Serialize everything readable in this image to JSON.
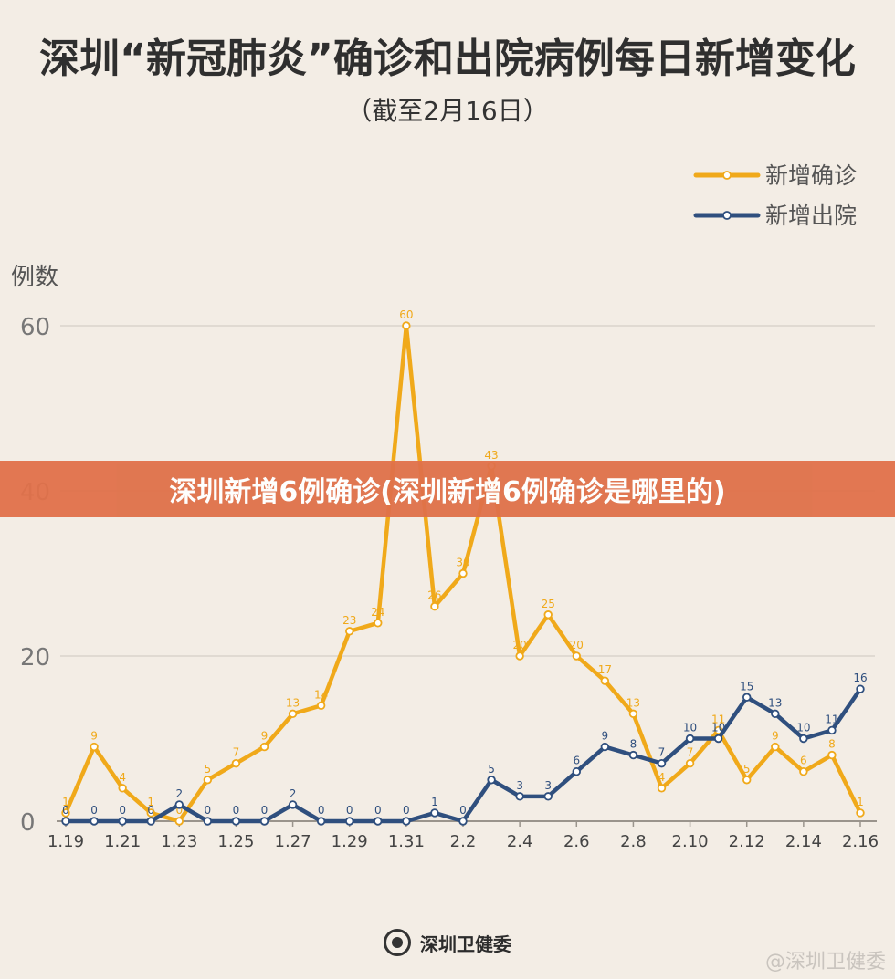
{
  "header": {
    "title": "深圳“新冠肺炎”确诊和出院病例每日新增变化",
    "subtitle": "（截至2月16日）"
  },
  "banner": {
    "text": "深圳新增6例确诊(深圳新增6例确诊是哪里的)"
  },
  "footer": {
    "source": "深圳卫健委",
    "watermark": "@深圳卫健委"
  },
  "colors": {
    "confirmed": "#f0a91a",
    "discharged": "#2f4f7e",
    "grid": "#d9d3cb",
    "axis_text": "#555555"
  },
  "chart_data": {
    "type": "line",
    "ylabel": "例数",
    "ylim": [
      0,
      60
    ],
    "yticks": [
      0,
      20,
      40,
      60
    ],
    "categories": [
      "1.19",
      "1.20",
      "1.21",
      "1.22",
      "1.23",
      "1.24",
      "1.25",
      "1.26",
      "1.27",
      "1.28",
      "1.29",
      "1.30",
      "1.31",
      "2.1",
      "2.2",
      "2.3",
      "2.4",
      "2.5",
      "2.6",
      "2.7",
      "2.8",
      "2.9",
      "2.10",
      "2.11",
      "2.12",
      "2.13",
      "2.14",
      "2.15",
      "2.16"
    ],
    "xtick_labels": [
      "1.19",
      "1.21",
      "1.23",
      "1.25",
      "1.27",
      "1.29",
      "1.31",
      "2.2",
      "2.4",
      "2.6",
      "2.8",
      "2.10",
      "2.12",
      "2.14",
      "2.16"
    ],
    "legend_position": "top-right",
    "series": [
      {
        "name": "新增确诊",
        "color": "#f0a91a",
        "values": [
          1,
          9,
          4,
          1,
          0,
          5,
          7,
          9,
          13,
          14,
          23,
          24,
          60,
          26,
          30,
          43,
          20,
          25,
          20,
          17,
          13,
          4,
          7,
          11,
          5,
          9,
          6,
          8,
          1
        ]
      },
      {
        "name": "新增出院",
        "color": "#2f4f7e",
        "values": [
          0,
          0,
          0,
          0,
          2,
          0,
          0,
          0,
          2,
          0,
          0,
          0,
          0,
          1,
          0,
          5,
          3,
          3,
          6,
          9,
          8,
          7,
          10,
          10,
          15,
          13,
          10,
          11,
          16
        ]
      }
    ]
  }
}
